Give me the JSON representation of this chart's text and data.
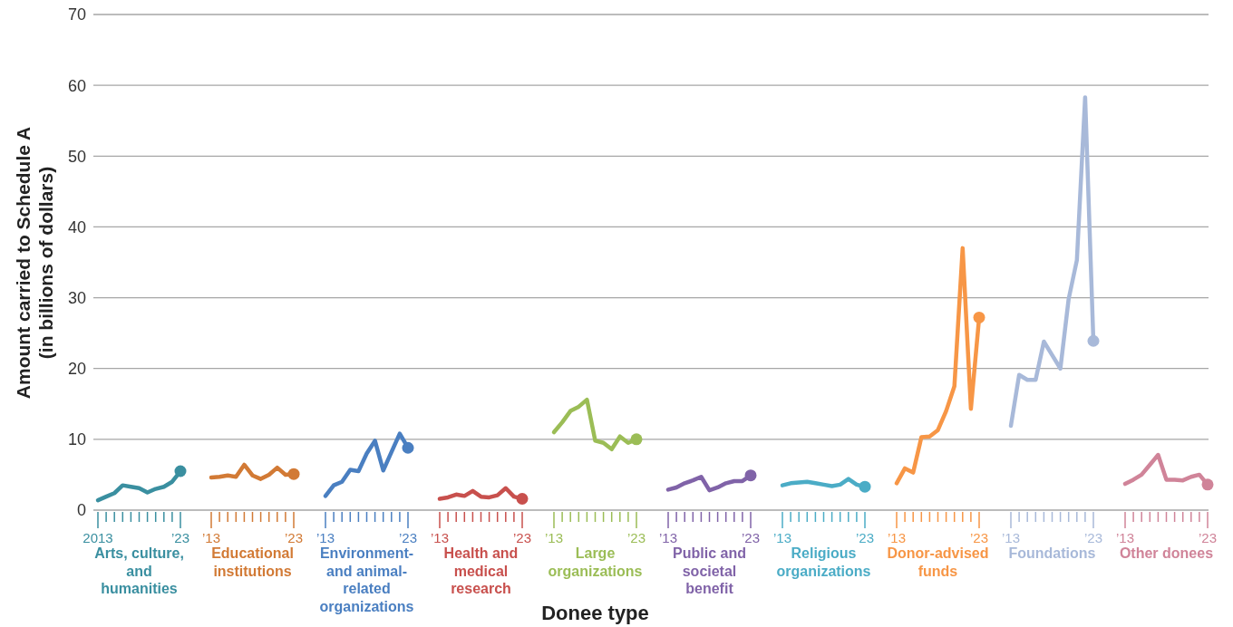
{
  "chart_data": [
    {
      "type": "line",
      "ylabel": "Amount carried to Schedule A (in billions of dollars)",
      "categories": [
        "2013",
        null,
        null,
        null,
        null,
        null,
        null,
        null,
        null,
        null,
        "’23"
      ],
      "series": [
        {
          "name": "Arts, culture, and humanities",
          "color": "#3a8fa0",
          "values": [
            1.4,
            1.9,
            2.4,
            3.5,
            3.3,
            3.1,
            2.5,
            3.0,
            3.3,
            4.0,
            5.5
          ]
        }
      ],
      "ylim": [
        0,
        70
      ],
      "yticks": [
        0,
        10,
        20,
        30,
        40,
        50,
        60,
        70
      ],
      "grid": "y"
    },
    {
      "type": "line",
      "categories": [
        "’13",
        null,
        null,
        null,
        null,
        null,
        null,
        null,
        null,
        null,
        "’23"
      ],
      "series": [
        {
          "name": "Educational institutions",
          "color": "#d27a35",
          "values": [
            4.6,
            4.7,
            4.9,
            4.7,
            6.4,
            4.9,
            4.4,
            5.0,
            6.0,
            5.0,
            5.1
          ]
        }
      ],
      "ylim": [
        0,
        70
      ],
      "yticks": [
        0,
        10,
        20,
        30,
        40,
        50,
        60,
        70
      ],
      "grid": "y",
      "tick_labels": "x"
    },
    {
      "type": "line",
      "categories": [
        "’13",
        null,
        null,
        null,
        null,
        null,
        null,
        null,
        null,
        null,
        "’23"
      ],
      "series": [
        {
          "name": "Environment- and animal-related organizations",
          "color": "#4a7fc1",
          "values": [
            2.0,
            3.5,
            4.0,
            5.7,
            5.5,
            8.0,
            9.8,
            5.6,
            8.2,
            10.8,
            8.8
          ]
        }
      ],
      "ylim": [
        0,
        70
      ],
      "yticks": [
        0,
        10,
        20,
        30,
        40,
        50,
        60,
        70
      ],
      "grid": "y",
      "tick_labels": "x"
    },
    {
      "type": "line",
      "categories": [
        "’13",
        null,
        null,
        null,
        null,
        null,
        null,
        null,
        null,
        null,
        "’23"
      ],
      "series": [
        {
          "name": "Health and medical research",
          "color": "#c8504d",
          "values": [
            1.6,
            1.8,
            2.2,
            2.0,
            2.7,
            1.9,
            1.8,
            2.1,
            3.1,
            1.9,
            1.6
          ]
        }
      ],
      "ylim": [
        0,
        70
      ],
      "yticks": [
        0,
        10,
        20,
        30,
        40,
        50,
        60,
        70
      ],
      "grid": "y",
      "tick_labels": "x"
    },
    {
      "type": "line",
      "xlabel": "Donee type",
      "categories": [
        "’13",
        null,
        null,
        null,
        null,
        null,
        null,
        null,
        null,
        null,
        "’23"
      ],
      "series": [
        {
          "name": "Large organizations",
          "color": "#9bbd56",
          "values": [
            11.0,
            12.4,
            14.0,
            14.6,
            15.6,
            9.8,
            9.5,
            8.6,
            10.4,
            9.5,
            10.0
          ]
        }
      ],
      "ylim": [
        0,
        70
      ],
      "yticks": [
        0,
        10,
        20,
        30,
        40,
        50,
        60,
        70
      ],
      "grid": "y",
      "tick_labels": "x"
    },
    {
      "type": "line",
      "categories": [
        "’13",
        null,
        null,
        null,
        null,
        null,
        null,
        null,
        null,
        null,
        "’23"
      ],
      "series": [
        {
          "name": "Public and societal benefit",
          "color": "#8063a8",
          "values": [
            2.9,
            3.2,
            3.8,
            4.2,
            4.7,
            2.8,
            3.2,
            3.8,
            4.1,
            4.1,
            4.9
          ]
        }
      ],
      "ylim": [
        0,
        70
      ],
      "yticks": [
        0,
        10,
        20,
        30,
        40,
        50,
        60,
        70
      ],
      "grid": "y",
      "tick_labels": "x"
    },
    {
      "type": "line",
      "categories": [
        "’13",
        null,
        null,
        null,
        null,
        null,
        null,
        null,
        null,
        null,
        "’23"
      ],
      "series": [
        {
          "name": "Religious organizations",
          "color": "#4bacc6",
          "values": [
            3.5,
            3.8,
            3.9,
            4.0,
            3.8,
            3.6,
            3.4,
            3.6,
            4.4,
            3.6,
            3.3
          ]
        }
      ],
      "ylim": [
        0,
        70
      ],
      "yticks": [
        0,
        10,
        20,
        30,
        40,
        50,
        60,
        70
      ],
      "grid": "y",
      "tick_labels": "x"
    },
    {
      "type": "line",
      "categories": [
        "’13",
        null,
        null,
        null,
        null,
        null,
        null,
        null,
        null,
        null,
        "’23"
      ],
      "series": [
        {
          "name": "Donor-advised funds",
          "color": "#f79646",
          "values": [
            3.8,
            5.9,
            5.3,
            10.3,
            10.4,
            11.3,
            14.0,
            17.5,
            37.0,
            14.3,
            27.2
          ]
        }
      ],
      "ylim": [
        0,
        70
      ],
      "yticks": [
        0,
        10,
        20,
        30,
        40,
        50,
        60,
        70
      ],
      "grid": "y",
      "tick_labels": "x"
    },
    {
      "type": "line",
      "categories": [
        "’13",
        null,
        null,
        null,
        null,
        null,
        null,
        null,
        null,
        null,
        "’23"
      ],
      "series": [
        {
          "name": "Foundations",
          "color": "#a8b9d9",
          "values": [
            11.9,
            19.1,
            18.4,
            18.4,
            23.8,
            21.9,
            20.0,
            29.8,
            35.3,
            58.3,
            23.9
          ]
        }
      ],
      "ylim": [
        0,
        70
      ],
      "yticks": [
        0,
        10,
        20,
        30,
        40,
        50,
        60,
        70
      ],
      "grid": "y",
      "tick_labels": "x"
    },
    {
      "type": "line",
      "categories": [
        "’13",
        null,
        null,
        null,
        null,
        null,
        null,
        null,
        null,
        null,
        "’23"
      ],
      "series": [
        {
          "name": "Other donees",
          "color": "#d08499",
          "values": [
            3.7,
            4.3,
            5.0,
            6.4,
            7.8,
            4.3,
            4.3,
            4.2,
            4.7,
            5.0,
            3.6
          ]
        }
      ],
      "ylim": [
        0,
        70
      ],
      "yticks": [
        0,
        10,
        20,
        30,
        40,
        50,
        60,
        70
      ],
      "grid": "y",
      "tick_labels": "x"
    }
  ]
}
